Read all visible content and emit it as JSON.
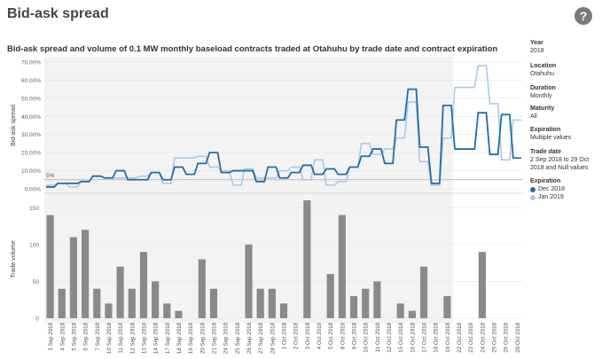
{
  "page": {
    "title": "Bid-ask spread",
    "help_icon": "question-circle-icon"
  },
  "filters": [
    {
      "label": "Year",
      "value": "2018"
    },
    {
      "label": "Location",
      "value": "Otahuhu"
    },
    {
      "label": "Duration",
      "value": "Monthly"
    },
    {
      "label": "Maturity",
      "value": "All"
    },
    {
      "label": "Expiration",
      "value": "Multiple values"
    },
    {
      "label": "Trade date",
      "value": "2 Sep 2018 to 29 Oct 2018 and Null values"
    }
  ],
  "legend": {
    "title": "Expiration",
    "items": [
      {
        "name": "Dec 2018",
        "color": "#1f6fa6"
      },
      {
        "name": "Jan 2019",
        "color": "#a9c6e8"
      }
    ]
  },
  "chart_data": [
    {
      "type": "line",
      "title": "Bid-ask spread and volume of 0.1 MW monthly baseload contracts traded at Otahuhu by trade date and contract expiration",
      "ylabel": "Bid-ask spread",
      "ylim": [
        0,
        0.7
      ],
      "yticks": [
        "0.00%",
        "10.00%",
        "20.00%",
        "30.00%",
        "40.00%",
        "50.00%",
        "60.00%",
        "70.00%"
      ],
      "reference_line": {
        "label": "5%",
        "value": 0.05
      },
      "shaded_until": "19 Oct 2018",
      "step": true,
      "categories": [
        "3 Sep 2018",
        "4 Sep 2018",
        "5 Sep 2018",
        "6 Sep 2018",
        "7 Sep 2018",
        "10 Sep 2018",
        "11 Sep 2018",
        "12 Sep 2018",
        "13 Sep 2018",
        "14 Sep 2018",
        "17 Sep 2018",
        "18 Sep 2018",
        "19 Sep 2018",
        "20 Sep 2018",
        "21 Sep 2018",
        "24 Sep 2018",
        "25 Sep 2018",
        "26 Sep 2018",
        "27 Sep 2018",
        "28 Sep 2018",
        "1 Oct 2018",
        "2 Oct 2018",
        "3 Oct 2018",
        "4 Oct 2018",
        "5 Oct 2018",
        "8 Oct 2018",
        "9 Oct 2018",
        "10 Oct 2018",
        "11 Oct 2018",
        "12 Oct 2018",
        "15 Oct 2018",
        "16 Oct 2018",
        "17 Oct 2018",
        "18 Oct 2018",
        "19 Oct 2018",
        "22 Oct 2018",
        "23 Oct 2018",
        "24 Oct 2018",
        "25 Oct 2018",
        "26 Oct 2018",
        "29 Oct 2018"
      ],
      "series": [
        {
          "name": "Dec 2018",
          "color": "#1f6fa6",
          "values": [
            0.01,
            0.03,
            0.03,
            0.04,
            0.07,
            0.06,
            0.1,
            0.05,
            0.05,
            0.09,
            0.05,
            0.12,
            0.08,
            0.14,
            0.2,
            0.09,
            0.1,
            0.1,
            0.04,
            0.12,
            0.06,
            0.09,
            0.13,
            0.08,
            0.11,
            0.08,
            0.12,
            0.18,
            0.22,
            0.14,
            0.38,
            0.55,
            0.23,
            0.03,
            0.46,
            0.22,
            0.22,
            0.42,
            0.19,
            0.41,
            0.17
          ]
        },
        {
          "name": "Jan 2019",
          "color": "#a9c6e8",
          "values": [
            0.02,
            0.03,
            0.01,
            0.04,
            0.07,
            0.06,
            0.06,
            0.06,
            0.07,
            0.09,
            0.03,
            0.17,
            0.17,
            0.18,
            0.12,
            0.1,
            0.02,
            0.11,
            0.06,
            0.06,
            0.1,
            0.12,
            0.05,
            0.16,
            0.02,
            0.04,
            0.12,
            0.25,
            0.19,
            0.22,
            0.28,
            0.48,
            0.15,
            0.02,
            0.28,
            0.56,
            0.56,
            0.68,
            0.47,
            0.16,
            0.38
          ]
        }
      ]
    },
    {
      "type": "bar",
      "ylabel": "Trade volume",
      "ylim": [
        0,
        160
      ],
      "yticks": [
        "0",
        "50",
        "100",
        "150"
      ],
      "color": "#8a8a8a",
      "categories": [
        "3 Sep 2018",
        "4 Sep 2018",
        "5 Sep 2018",
        "6 Sep 2018",
        "7 Sep 2018",
        "10 Sep 2018",
        "11 Sep 2018",
        "12 Sep 2018",
        "13 Sep 2018",
        "14 Sep 2018",
        "17 Sep 2018",
        "18 Sep 2018",
        "19 Sep 2018",
        "20 Sep 2018",
        "21 Sep 2018",
        "24 Sep 2018",
        "25 Sep 2018",
        "26 Sep 2018",
        "27 Sep 2018",
        "28 Sep 2018",
        "1 Oct 2018",
        "2 Oct 2018",
        "3 Oct 2018",
        "4 Oct 2018",
        "5 Oct 2018",
        "8 Oct 2018",
        "9 Oct 2018",
        "10 Oct 2018",
        "11 Oct 2018",
        "12 Oct 2018",
        "15 Oct 2018",
        "16 Oct 2018",
        "17 Oct 2018",
        "18 Oct 2018",
        "19 Oct 2018",
        "22 Oct 2018",
        "23 Oct 2018",
        "24 Oct 2018",
        "25 Oct 2018",
        "26 Oct 2018",
        "29 Oct 2018"
      ],
      "values": [
        140,
        40,
        110,
        120,
        40,
        20,
        70,
        40,
        90,
        50,
        20,
        10,
        0,
        80,
        40,
        0,
        0,
        100,
        40,
        40,
        20,
        0,
        160,
        0,
        60,
        140,
        30,
        40,
        50,
        0,
        20,
        10,
        70,
        0,
        30,
        0,
        0,
        90,
        0,
        0,
        0
      ]
    }
  ]
}
